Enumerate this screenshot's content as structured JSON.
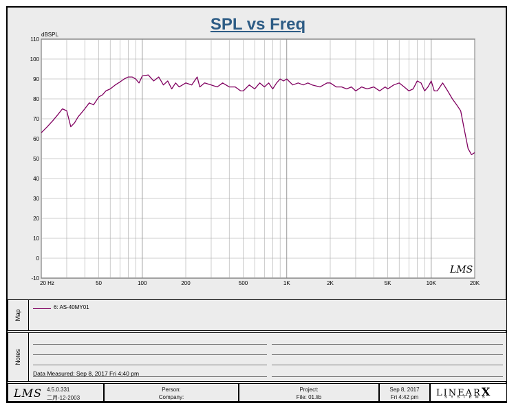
{
  "chart_data": {
    "type": "line",
    "title": "SPL vs Freq",
    "ylabel": "dBSPL",
    "xlabel": "",
    "x_scale": "log",
    "xlim": [
      20,
      20000
    ],
    "ylim": [
      -10,
      110
    ],
    "y_ticks": [
      -10,
      0,
      10,
      20,
      30,
      40,
      50,
      60,
      70,
      80,
      90,
      100,
      110
    ],
    "x_ticks": [
      {
        "value": 20,
        "label": "20  Hz"
      },
      {
        "value": 50,
        "label": "50"
      },
      {
        "value": 100,
        "label": "100"
      },
      {
        "value": 200,
        "label": "200"
      },
      {
        "value": 500,
        "label": "500"
      },
      {
        "value": 1000,
        "label": "1K"
      },
      {
        "value": 2000,
        "label": "2K"
      },
      {
        "value": 5000,
        "label": "5K"
      },
      {
        "value": 10000,
        "label": "10K"
      },
      {
        "value": 20000,
        "label": "20K"
      }
    ],
    "grid": true,
    "series": [
      {
        "name": "6: AS-40MY01",
        "color": "#800060",
        "x": [
          20,
          22,
          24,
          26,
          28,
          30,
          32,
          34,
          36,
          38,
          40,
          43,
          46,
          50,
          53,
          56,
          60,
          65,
          70,
          75,
          80,
          85,
          90,
          95,
          100,
          110,
          120,
          130,
          140,
          150,
          160,
          170,
          180,
          200,
          220,
          240,
          250,
          270,
          300,
          330,
          360,
          400,
          440,
          480,
          500,
          550,
          600,
          650,
          700,
          750,
          800,
          850,
          900,
          950,
          1000,
          1100,
          1200,
          1300,
          1400,
          1500,
          1700,
          1900,
          2000,
          2200,
          2400,
          2600,
          2800,
          3000,
          3300,
          3600,
          4000,
          4400,
          4800,
          5000,
          5500,
          6000,
          6500,
          7000,
          7500,
          8000,
          8500,
          9000,
          9500,
          10000,
          10500,
          11000,
          12000,
          13000,
          14000,
          15000,
          16000,
          17000,
          18000,
          19000,
          20000
        ],
        "values": [
          63,
          66,
          69,
          72,
          75,
          74,
          66,
          68,
          71,
          73,
          75,
          78,
          77,
          81,
          82,
          84,
          85,
          87,
          88.5,
          90,
          91,
          91,
          90,
          88,
          91.5,
          92,
          89,
          91,
          87,
          89,
          85,
          88,
          86,
          88,
          87,
          91,
          86,
          88,
          87,
          86,
          88,
          86,
          86,
          84,
          84,
          87,
          85,
          88,
          86,
          88,
          85,
          88,
          90,
          89,
          90,
          87,
          88,
          87,
          88,
          87,
          86,
          88,
          88,
          86,
          86,
          85,
          86,
          84,
          86,
          85,
          86,
          84,
          86,
          85,
          87,
          88,
          86,
          84,
          85,
          89,
          88,
          84,
          86,
          89,
          84,
          84,
          88,
          84,
          80,
          77,
          74,
          64,
          55,
          52,
          53
        ]
      }
    ]
  },
  "map_panel": {
    "label": "Map",
    "legend": [
      {
        "text": "6: AS-40MY01",
        "color": "#800060"
      }
    ]
  },
  "notes_panel": {
    "label": "Notes",
    "data_measured": "Data Measured: Sep  8, 2017  Fri  4:40 pm"
  },
  "footer": {
    "version": "4.5.0.331",
    "build_date": "二月-12-2003",
    "person_label": "Person:",
    "company_label": "Company:",
    "project_label": "Project:",
    "file_label": "File: 01.lib",
    "date": "Sep  8, 2017",
    "time": "Fri  4:42 pm",
    "lms_logo": "LMS",
    "brand_top": "LINEAR",
    "brand_x": "X",
    "brand_bottom": "SYSTEMS"
  },
  "watermark": "LMS"
}
